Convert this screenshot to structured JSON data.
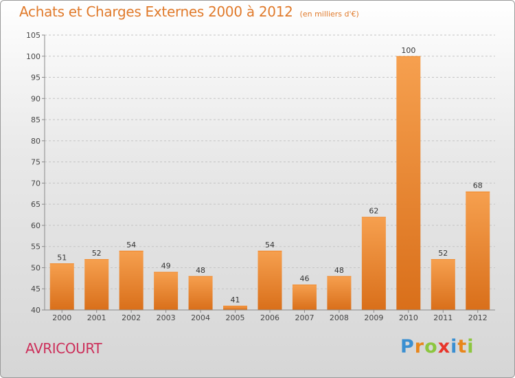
{
  "header": {
    "title": "Achats et Charges Externes 2000 à 2012",
    "subtitle": "(en milliers d'€)"
  },
  "footer": {
    "town": "AVRICOURT",
    "logo_letters": [
      "P",
      "r",
      "o",
      "x",
      "i",
      "t",
      "i"
    ]
  },
  "colors": {
    "bar": "#f08a2f",
    "bar_light": "#f6a04f",
    "bar_dark": "#d96f1a",
    "title": "#e07a2b",
    "town": "#cc2f5a",
    "logo": [
      "#3a8fd1",
      "#e8861b",
      "#8cc63f",
      "#e8342a",
      "#3a8fd1",
      "#e8861b",
      "#8cc63f"
    ]
  },
  "chart_data": {
    "type": "bar",
    "title": "Achats et Charges Externes 2000 à 2012",
    "subtitle": "(en milliers d'€)",
    "categories": [
      "2000",
      "2001",
      "2002",
      "2003",
      "2004",
      "2005",
      "2006",
      "2007",
      "2008",
      "2009",
      "2010",
      "2011",
      "2012"
    ],
    "values": [
      51,
      52,
      54,
      49,
      48,
      41,
      54,
      46,
      48,
      62,
      100,
      52,
      68
    ],
    "ylim": [
      40,
      105
    ],
    "yticks": [
      40,
      45,
      50,
      55,
      60,
      65,
      70,
      75,
      80,
      85,
      90,
      95,
      100,
      105
    ],
    "xlabel": "",
    "ylabel": "",
    "grid": true
  }
}
